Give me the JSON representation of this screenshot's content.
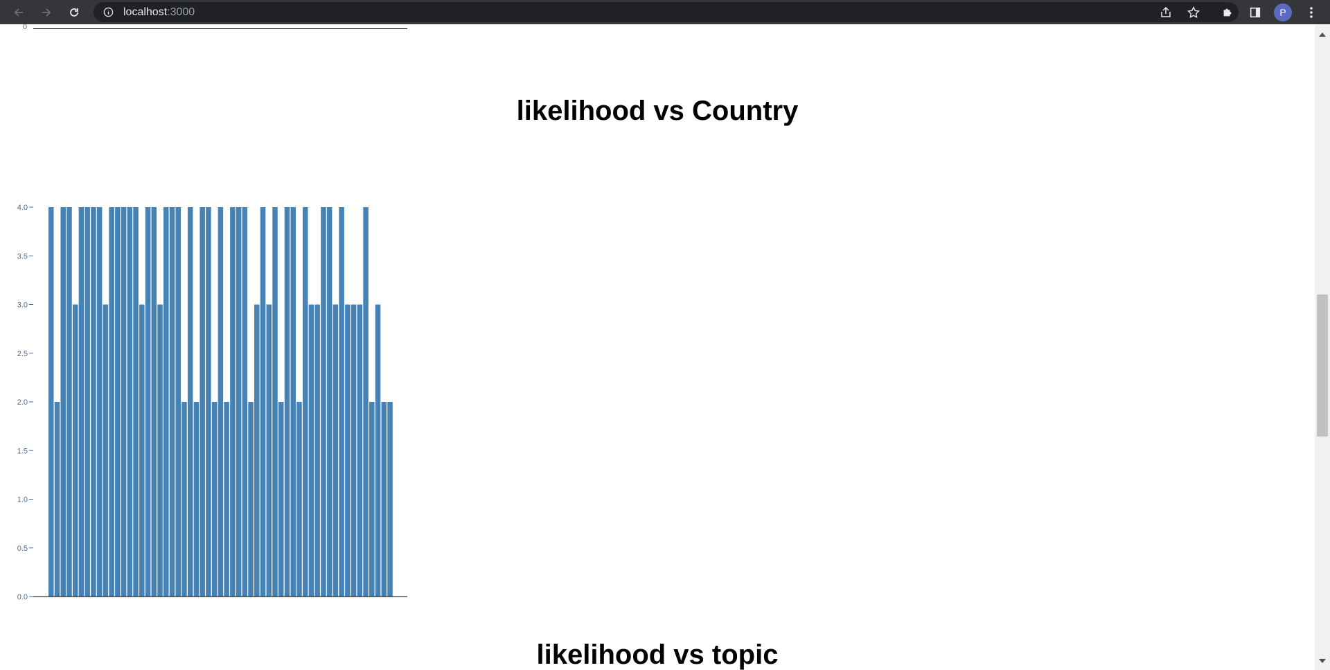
{
  "browser": {
    "url_host": "localhost",
    "url_port": ":3000",
    "avatar_letter": "P"
  },
  "page": {
    "prev_chart_tick": "0",
    "next_chart_title": "likelihood vs topic"
  },
  "chart_data": {
    "type": "bar",
    "title": "likelihood vs Country",
    "xlabel": "",
    "ylabel": "",
    "ylim": [
      0,
      4.0
    ],
    "yticks": [
      "0.0",
      "0.5",
      "1.0",
      "1.5",
      "2.0",
      "2.5",
      "3.0",
      "3.5",
      "4.0"
    ],
    "bar_color": "#4682b4",
    "values": [
      4,
      2,
      4,
      4,
      3,
      4,
      4,
      4,
      4,
      3,
      4,
      4,
      4,
      4,
      4,
      3,
      4,
      4,
      3,
      4,
      4,
      4,
      2,
      4,
      2,
      4,
      4,
      2,
      4,
      2,
      4,
      4,
      4,
      2,
      3,
      4,
      3,
      4,
      2,
      4,
      4,
      2,
      4,
      3,
      3,
      4,
      4,
      3,
      4,
      3,
      3,
      3,
      4,
      2,
      3,
      2,
      2
    ]
  }
}
